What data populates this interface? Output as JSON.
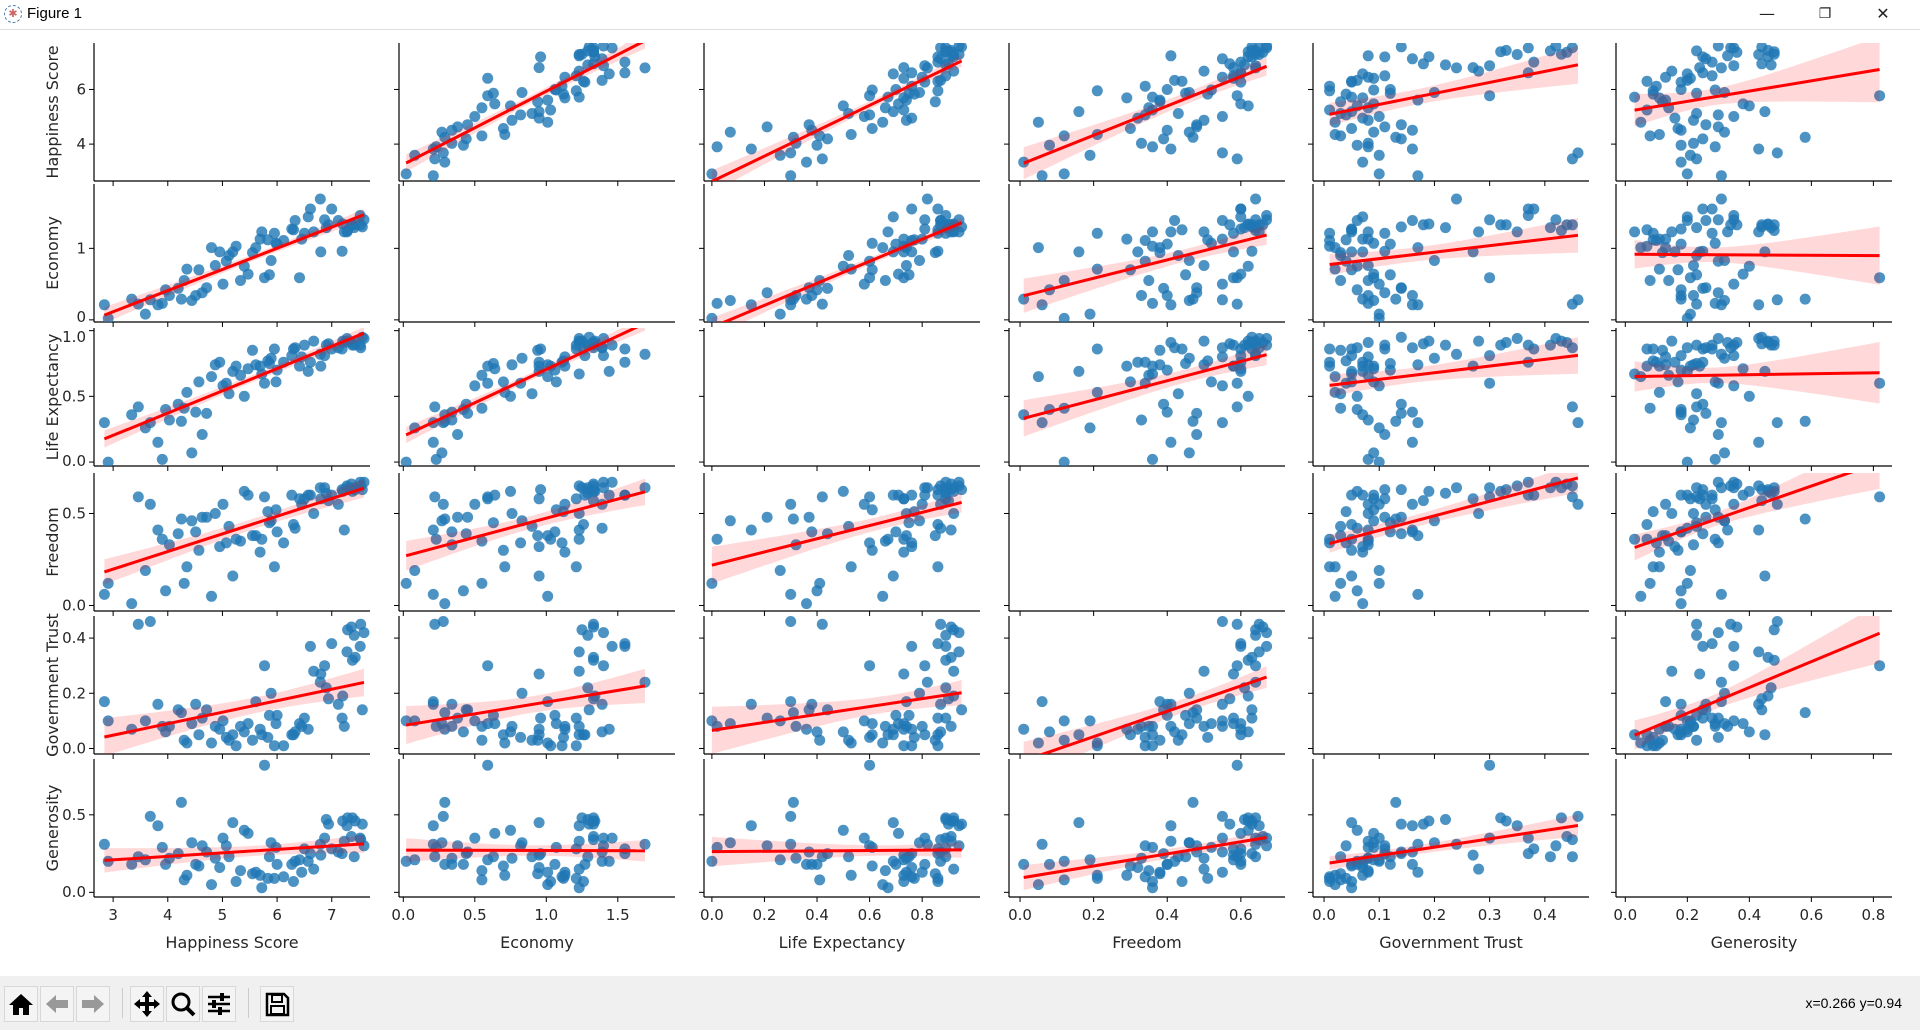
{
  "window": {
    "title": "Figure 1",
    "minimize": "—",
    "maximize": "❐",
    "close": "✕"
  },
  "toolbar": {
    "buttons": [
      "home-icon",
      "back-icon",
      "forward-icon",
      "pan-icon",
      "zoom-icon",
      "configure-subplots-icon",
      "save-icon"
    ],
    "status": "x=0.266 y=0.94"
  },
  "colors": {
    "points": "#1f77b4",
    "regression": "#ff0000",
    "band": "#ff0000"
  },
  "chart_data": {
    "type": "scatter",
    "kind": "pairplot-with-regression",
    "variables": [
      {
        "name": "Happiness Score",
        "range": [
          2.65,
          7.7
        ],
        "ticks": [
          3,
          4,
          5,
          6,
          7
        ],
        "yticks": [
          4,
          6
        ],
        "tick_labels": [
          "3",
          "4",
          "5",
          "6",
          "7"
        ],
        "ytick_labels": [
          "4",
          "6"
        ]
      },
      {
        "name": "Economy",
        "range": [
          -0.03,
          1.9
        ],
        "ticks": [
          0,
          0.5,
          1.0,
          1.5
        ],
        "yticks": [
          0,
          1
        ],
        "tick_labels": [
          "0.0",
          "0.5",
          "1.0",
          "1.5"
        ],
        "ytick_labels": [
          "0",
          "1"
        ]
      },
      {
        "name": "Life Expectancy",
        "range": [
          -0.03,
          1.02
        ],
        "ticks": [
          0,
          0.2,
          0.4,
          0.6,
          0.8
        ],
        "yticks": [
          0,
          0.5,
          1.0
        ],
        "tick_labels": [
          "0.0",
          "0.2",
          "0.4",
          "0.6",
          "0.8"
        ],
        "ytick_labels": [
          "0.0",
          "0.5",
          "1.0"
        ]
      },
      {
        "name": "Freedom",
        "range": [
          -0.03,
          0.72
        ],
        "ticks": [
          0,
          0.2,
          0.4,
          0.6
        ],
        "yticks": [
          0,
          0.5
        ],
        "tick_labels": [
          "0.0",
          "0.2",
          "0.4",
          "0.6"
        ],
        "ytick_labels": [
          "0.0",
          "0.5"
        ]
      },
      {
        "name": "Government Trust",
        "range": [
          -0.02,
          0.48
        ],
        "ticks": [
          0,
          0.1,
          0.2,
          0.3,
          0.4
        ],
        "yticks": [
          0,
          0.2,
          0.4
        ],
        "tick_labels": [
          "0.0",
          "0.1",
          "0.2",
          "0.3",
          "0.4"
        ],
        "ytick_labels": [
          "0.0",
          "0.2",
          "0.4"
        ]
      },
      {
        "name": "Generosity",
        "range": [
          -0.03,
          0.86
        ],
        "ticks": [
          0,
          0.2,
          0.4,
          0.6,
          0.8
        ],
        "yticks": [
          0,
          0.5
        ],
        "tick_labels": [
          "0.0",
          "0.2",
          "0.4",
          "0.6",
          "0.8"
        ],
        "ytick_labels": [
          "0.0",
          "0.5"
        ]
      }
    ],
    "rows": [
      [
        7.59,
        1.4,
        0.94,
        0.67,
        0.42,
        0.3
      ],
      [
        7.56,
        1.3,
        0.95,
        0.63,
        0.14,
        0.44
      ],
      [
        7.53,
        1.33,
        0.87,
        0.65,
        0.45,
        0.34
      ],
      [
        7.52,
        1.46,
        0.89,
        0.67,
        0.37,
        0.35
      ],
      [
        7.43,
        1.33,
        0.91,
        0.63,
        0.33,
        0.46
      ],
      [
        7.41,
        1.29,
        0.89,
        0.64,
        0.41,
        0.23
      ],
      [
        7.38,
        1.33,
        0.89,
        0.62,
        0.32,
        0.48
      ],
      [
        7.36,
        1.33,
        0.91,
        0.66,
        0.44,
        0.36
      ],
      [
        7.29,
        1.25,
        0.92,
        0.64,
        0.43,
        0.48
      ],
      [
        7.28,
        1.23,
        0.94,
        0.65,
        0.35,
        0.43
      ],
      [
        7.23,
        1.23,
        0.91,
        0.41,
        0.08,
        0.33
      ],
      [
        7.2,
        1.34,
        0.92,
        0.62,
        0.19,
        0.46
      ],
      [
        7.19,
        0.96,
        0.86,
        0.63,
        0.11,
        0.25
      ],
      [
        7.12,
        1.39,
        0.87,
        0.55,
        0.16,
        0.26
      ],
      [
        7.0,
        1.55,
        0.86,
        0.6,
        0.38,
        0.28
      ],
      [
        6.94,
        1.33,
        0.9,
        0.57,
        0.18,
        0.44
      ],
      [
        6.9,
        1.29,
        0.89,
        0.61,
        0.22,
        0.47
      ],
      [
        6.87,
        1.4,
        0.81,
        0.64,
        0.3,
        0.35
      ],
      [
        6.8,
        0.95,
        0.73,
        0.58,
        0.27,
        0.24
      ],
      [
        6.79,
        1.69,
        0.82,
        0.64,
        0.24,
        0.31
      ],
      [
        6.67,
        1.23,
        0.92,
        0.5,
        0.28,
        0.15
      ],
      [
        6.61,
        1.55,
        0.76,
        0.6,
        0.37,
        0.25
      ],
      [
        6.57,
        1.44,
        0.69,
        0.6,
        0.07,
        0.2
      ],
      [
        6.5,
        1.21,
        0.89,
        0.58,
        0.11,
        0.28
      ],
      [
        6.45,
        1.13,
        0.8,
        0.55,
        0.08,
        0.13
      ],
      [
        6.41,
        0.59,
        0.73,
        0.58,
        0.09,
        0.21
      ],
      [
        6.33,
        1.39,
        0.87,
        0.42,
        0.06,
        0.2
      ],
      [
        6.3,
        1.26,
        0.86,
        0.44,
        0.05,
        0.07
      ],
      [
        6.27,
        1.27,
        0.81,
        0.6,
        0.05,
        0.18
      ],
      [
        6.12,
        1.11,
        0.76,
        0.34,
        0.01,
        0.1
      ],
      [
        6.0,
        1.06,
        0.7,
        0.4,
        0.12,
        0.18
      ],
      [
        5.98,
        1.07,
        0.61,
        0.52,
        0.09,
        0.29
      ],
      [
        5.95,
        1.21,
        0.86,
        0.21,
        0.01,
        0.09
      ],
      [
        5.89,
        0.83,
        0.79,
        0.46,
        0.2,
        0.32
      ],
      [
        5.86,
        0.63,
        0.75,
        0.45,
        0.12,
        0.23
      ],
      [
        5.83,
        1.12,
        0.77,
        0.51,
        0.04,
        0.09
      ],
      [
        5.77,
        0.59,
        0.6,
        0.59,
        0.3,
        0.82
      ],
      [
        5.72,
        1.23,
        0.67,
        0.36,
        0.05,
        0.03
      ],
      [
        5.69,
        1.13,
        0.73,
        0.29,
        0.07,
        0.11
      ],
      [
        5.61,
        1.01,
        0.74,
        0.38,
        0.17,
        0.13
      ],
      [
        5.55,
        0.94,
        0.85,
        0.38,
        0.03,
        0.12
      ],
      [
        5.47,
        0.64,
        0.71,
        0.6,
        0.09,
        0.38
      ],
      [
        5.4,
        0.75,
        0.5,
        0.62,
        0.06,
        0.4
      ],
      [
        5.33,
        0.55,
        0.66,
        0.35,
        0.08,
        0.14
      ],
      [
        5.25,
        1.03,
        0.73,
        0.36,
        0.01,
        0.07
      ],
      [
        5.19,
        0.95,
        0.69,
        0.16,
        0.05,
        0.45
      ],
      [
        5.12,
        0.9,
        0.52,
        0.43,
        0.03,
        0.23
      ],
      [
        5.07,
        0.82,
        0.6,
        0.34,
        0.04,
        0.3
      ],
      [
        5.01,
        0.5,
        0.58,
        0.55,
        0.1,
        0.35
      ],
      [
        4.95,
        0.95,
        0.76,
        0.32,
        0.07,
        0.16
      ],
      [
        4.87,
        0.76,
        0.74,
        0.5,
        0.08,
        0.22
      ],
      [
        4.8,
        1.01,
        0.65,
        0.05,
        0.02,
        0.05
      ],
      [
        4.71,
        0.45,
        0.37,
        0.48,
        0.14,
        0.26
      ],
      [
        4.63,
        0.38,
        0.21,
        0.48,
        0.11,
        0.3
      ],
      [
        4.57,
        0.7,
        0.61,
        0.3,
        0.05,
        0.17
      ],
      [
        4.51,
        0.34,
        0.38,
        0.4,
        0.16,
        0.18
      ],
      [
        4.44,
        0.27,
        0.07,
        0.46,
        0.09,
        0.32
      ],
      [
        4.35,
        0.71,
        0.53,
        0.21,
        0.02,
        0.11
      ],
      [
        4.3,
        0.55,
        0.41,
        0.12,
        0.03,
        0.08
      ],
      [
        4.25,
        0.29,
        0.31,
        0.47,
        0.13,
        0.58
      ],
      [
        4.19,
        0.44,
        0.44,
        0.39,
        0.14,
        0.25
      ],
      [
        4.03,
        0.34,
        0.32,
        0.33,
        0.08,
        0.22
      ],
      [
        3.96,
        0.42,
        0.4,
        0.08,
        0.06,
        0.18
      ],
      [
        3.9,
        0.23,
        0.02,
        0.36,
        0.08,
        0.29
      ],
      [
        3.82,
        0.21,
        0.15,
        0.41,
        0.16,
        0.43
      ],
      [
        3.68,
        0.28,
        0.3,
        0.55,
        0.46,
        0.49
      ],
      [
        3.59,
        0.08,
        0.26,
        0.19,
        0.1,
        0.21
      ],
      [
        3.46,
        0.22,
        0.42,
        0.59,
        0.45,
        0.23
      ],
      [
        3.34,
        0.29,
        0.36,
        0.01,
        0.07,
        0.18
      ],
      [
        2.91,
        0.02,
        0.0,
        0.12,
        0.1,
        0.2
      ],
      [
        2.84,
        0.21,
        0.3,
        0.06,
        0.17,
        0.31
      ]
    ],
    "diagonal": "empty",
    "regression": "linear fit with 95% confidence band"
  }
}
